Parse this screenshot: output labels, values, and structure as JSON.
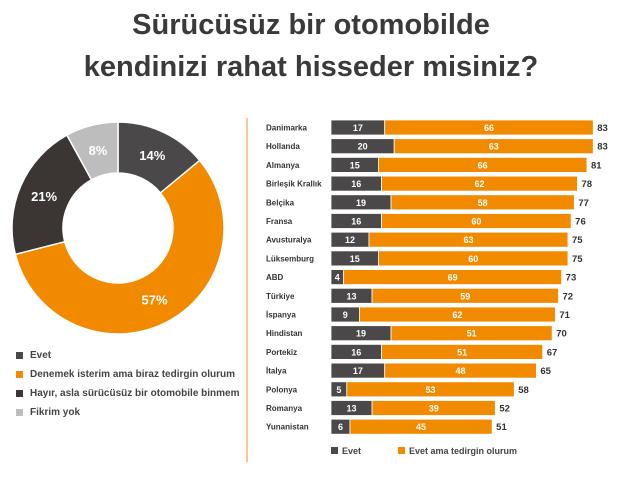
{
  "title_lines": [
    "Sürücüsüz bir otomobilde",
    "kendinizi rahat hisseder misiniz?"
  ],
  "colors": {
    "evet": "#4a4848",
    "tedirgin": "#f28a00",
    "hayir": "#3b3634",
    "fikrim_yok": "#bdbdbd",
    "divider": "#f5c99a"
  },
  "chart_data": [
    {
      "type": "pie",
      "donut": true,
      "slices": [
        {
          "name": "Evet",
          "value": 14,
          "label": "14%",
          "color": "#4a4848"
        },
        {
          "name": "Denemek isterim ama biraz tedirgin olurum",
          "value": 57,
          "label": "57%",
          "color": "#f28a00"
        },
        {
          "name": "Hayır, asla sürücüsüz bir otomobile binmem",
          "value": 21,
          "label": "21%",
          "color": "#3b3634"
        },
        {
          "name": "Fikrim yok",
          "value": 8,
          "label": "8%",
          "color": "#bdbdbd"
        }
      ],
      "legend_placement": "bottom"
    },
    {
      "type": "bar",
      "orientation": "horizontal",
      "stacked": true,
      "categories": [
        "Danimarka",
        "Hollanda",
        "Almanya",
        "Birleşik Krallık",
        "Belçika",
        "Fransa",
        "Avusturalya",
        "Lüksemburg",
        "ABD",
        "Türkiye",
        "İspanya",
        "Hindistan",
        "Portekiz",
        "İtalya",
        "Polonya",
        "Romanya",
        "Yunanistan"
      ],
      "series": [
        {
          "name": "Evet",
          "color": "#4a4848",
          "values": [
            17,
            20,
            15,
            16,
            19,
            16,
            12,
            15,
            4,
            13,
            9,
            19,
            16,
            17,
            5,
            13,
            6
          ]
        },
        {
          "name": "Evet ama tedirgin olurum",
          "color": "#f28a00",
          "values": [
            66,
            63,
            66,
            62,
            58,
            60,
            63,
            60,
            69,
            59,
            62,
            51,
            51,
            48,
            53,
            39,
            45
          ]
        }
      ],
      "totals": [
        83,
        83,
        81,
        78,
        77,
        76,
        75,
        75,
        73,
        72,
        71,
        70,
        67,
        65,
        58,
        52,
        51
      ],
      "legend_placement": "bottom",
      "grid": false
    }
  ]
}
